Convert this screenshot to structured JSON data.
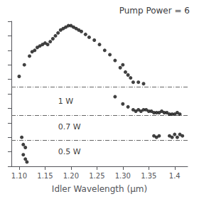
{
  "chart_data": {
    "type": "scatter",
    "title": "Pump Power = 6",
    "xlabel": "Idler Wavelength (μm)",
    "xlim": [
      1.085,
      1.425
    ],
    "xticks": [
      {
        "value": 1.1,
        "label": "1.10"
      },
      1.15,
      {
        "value": 1.2,
        "label": "1.20"
      },
      1.25,
      {
        "value": 1.3,
        "label": "1.30"
      },
      1.35,
      1.4
    ],
    "ylim": [
      0,
      100
    ],
    "yticks": [
      0,
      10,
      20,
      30,
      40,
      50,
      60,
      70,
      80,
      90,
      100
    ],
    "tick_labels": "x",
    "grid": false,
    "series": [
      {
        "color": "#111111",
        "x": [
          1.1,
          1.11,
          1.12,
          1.125,
          1.13,
          1.135,
          1.14,
          1.145,
          1.15,
          1.155,
          1.16,
          1.165,
          1.17,
          1.175,
          1.18,
          1.185,
          1.19,
          1.195,
          1.2,
          1.205,
          1.21,
          1.215,
          1.22,
          1.228,
          1.235,
          1.245,
          1.255,
          1.265,
          1.275,
          1.285,
          1.295,
          1.3,
          1.305,
          1.31,
          1.315,
          1.32,
          1.33,
          1.34
        ],
        "values": [
          62,
          70,
          76,
          79,
          80,
          82,
          83,
          84,
          85,
          84,
          86,
          88,
          90,
          92,
          94,
          95,
          96,
          97,
          97,
          96,
          95,
          94,
          93,
          91,
          89,
          87,
          84,
          80,
          77,
          73,
          68,
          70,
          65,
          63,
          61,
          58,
          58,
          57
        ]
      },
      {
        "color": "#111111",
        "x": [
          1.285,
          1.3,
          1.31,
          1.32,
          1.325,
          1.33,
          1.335,
          1.34,
          1.345,
          1.35,
          1.355,
          1.36,
          1.365,
          1.37,
          1.375,
          1.38,
          1.385,
          1.39,
          1.395,
          1.4,
          1.405,
          1.41
        ],
        "values": [
          48,
          43,
          41,
          39,
          38,
          39,
          38,
          39,
          39,
          38,
          38,
          37,
          37,
          37,
          38,
          37,
          37,
          36,
          36,
          36,
          37,
          36
        ]
      },
      {
        "color": "#111111",
        "x": [
          1.105,
          1.108,
          1.112,
          1.36,
          1.365,
          1.37,
          1.39,
          1.395,
          1.4,
          1.405,
          1.41,
          1.415
        ],
        "values": [
          20,
          15,
          13,
          21,
          20,
          21,
          21,
          20,
          22,
          20,
          22,
          21
        ]
      },
      {
        "color": "#111111",
        "x": [
          1.108,
          1.112,
          1.115
        ],
        "values": [
          8,
          5,
          3
        ]
      }
    ],
    "reference_lines": [
      {
        "y": 55,
        "color": "#666666",
        "line_style": "dashdot"
      },
      {
        "y": 35,
        "color": "#666666",
        "line_style": "dashdot"
      },
      {
        "y": 18,
        "color": "#666666",
        "line_style": "dashdot"
      }
    ],
    "annotations": [
      {
        "text": "1 W",
        "x": 1.175,
        "y": 45
      },
      {
        "text": "0.7 W",
        "x": 1.175,
        "y": 27
      },
      {
        "text": "0.5 W",
        "x": 1.175,
        "y": 10
      }
    ]
  }
}
